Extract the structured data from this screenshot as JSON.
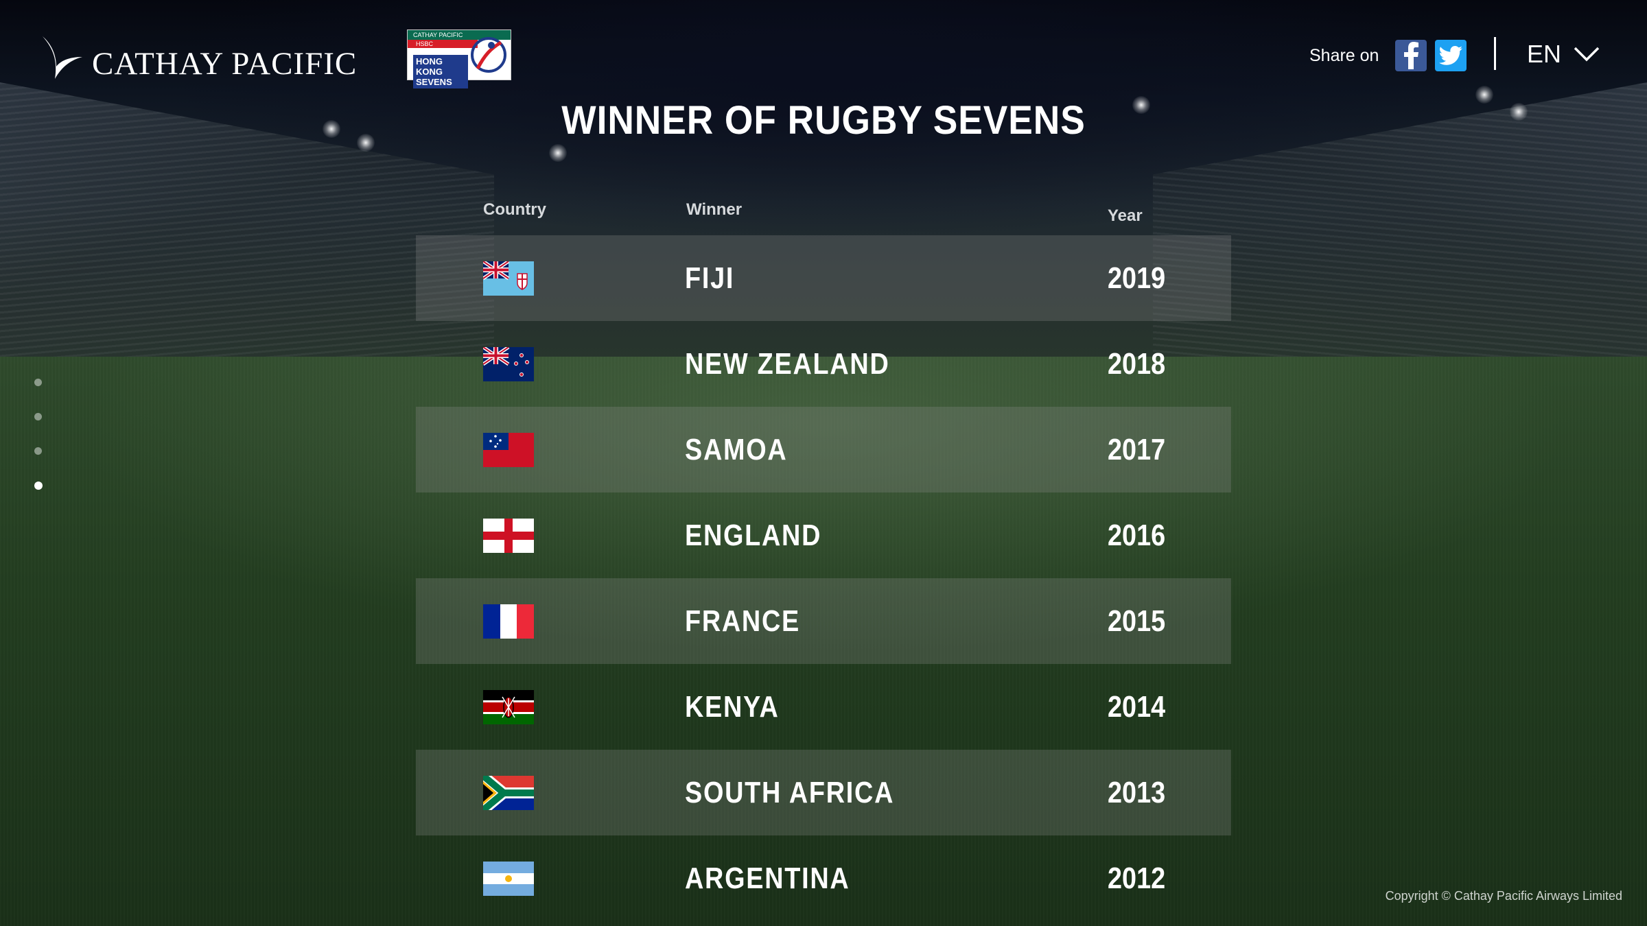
{
  "header": {
    "brand_name": "CATHAY PACIFIC",
    "event_logo": {
      "line1": "CATHAY PACIFIC",
      "line2": "HSBC",
      "line3": "HONG KONG",
      "line4": "SEVENS"
    },
    "share_label": "Share on",
    "language": "EN",
    "icons": [
      "facebook-icon",
      "twitter-icon",
      "chevron-down-icon"
    ]
  },
  "title": "WINNER OF RUGBY SEVENS",
  "columns": {
    "country": "Country",
    "winner": "Winner",
    "year": "Year"
  },
  "rows": [
    {
      "flag": "fiji-flag",
      "winner": "FIJI",
      "year": "2019"
    },
    {
      "flag": "new-zealand-flag",
      "winner": "NEW ZEALAND",
      "year": "2018"
    },
    {
      "flag": "samoa-flag",
      "winner": "SAMOA",
      "year": "2017"
    },
    {
      "flag": "england-flag",
      "winner": "ENGLAND",
      "year": "2016"
    },
    {
      "flag": "france-flag",
      "winner": "FRANCE",
      "year": "2015"
    },
    {
      "flag": "kenya-flag",
      "winner": "KENYA",
      "year": "2014"
    },
    {
      "flag": "south-africa-flag",
      "winner": "SOUTH AFRICA",
      "year": "2013"
    },
    {
      "flag": "argentina-flag",
      "winner": "ARGENTINA",
      "year": "2012"
    }
  ],
  "pagination": {
    "total": 4,
    "active_index": 3
  },
  "copyright": "Copyright © Cathay Pacific Airways Limited",
  "colors": {
    "facebook": "#3b5998",
    "twitter": "#1da1f2",
    "row_shade": "rgba(140,140,140,0.28)"
  }
}
